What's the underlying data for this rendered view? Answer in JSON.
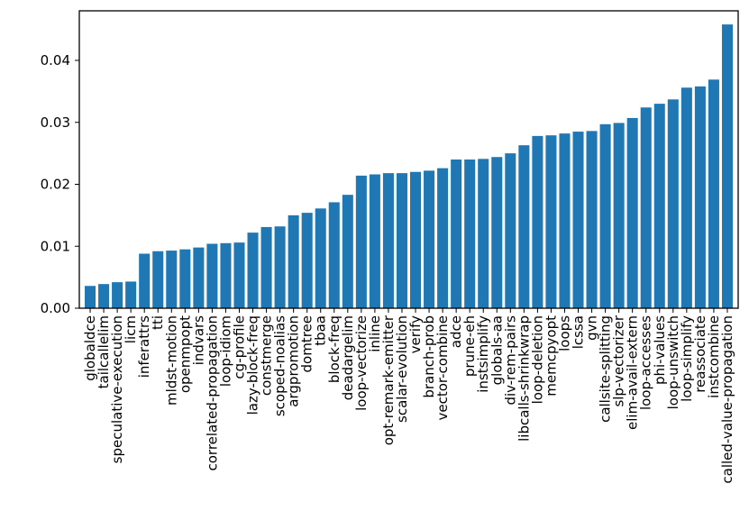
{
  "chart_data": {
    "type": "bar",
    "title": "",
    "xlabel": "",
    "ylabel": "",
    "ylim": [
      0,
      0.048
    ],
    "yticks": [
      0.0,
      0.01,
      0.02,
      0.03,
      0.04
    ],
    "ytick_labels": [
      "0.00",
      "0.01",
      "0.02",
      "0.03",
      "0.04"
    ],
    "grid": false,
    "legend": "none",
    "bar_color": "#1f77b4",
    "categories": [
      "globaldce",
      "tailcallelim",
      "speculative-execution",
      "licm",
      "inferattrs",
      "tti",
      "mldst-motion",
      "openmpopt",
      "indvars",
      "correlated-propagation",
      "loop-idiom",
      "cg-profile",
      "lazy-block-freq",
      "constmerge",
      "scoped-noalias",
      "argpromotion",
      "domtree",
      "tbaa",
      "block-freq",
      "deadargelim",
      "loop-vectorize",
      "inline",
      "opt-remark-emitter",
      "scalar-evolution",
      "verify",
      "branch-prob",
      "vector-combine",
      "adce",
      "prune-eh",
      "instsimplify",
      "globals-aa",
      "div-rem-pairs",
      "libcalls-shrinkwrap",
      "loop-deletion",
      "memcpyopt",
      "loops",
      "lcssa",
      "gvn",
      "callsite-splitting",
      "slp-vectorizer",
      "elim-avail-extern",
      "loop-accesses",
      "phi-values",
      "loop-unswitch",
      "loop-simplify",
      "reassociate",
      "instcombine",
      "called-value-propagation"
    ],
    "values": [
      0.0036,
      0.0039,
      0.0042,
      0.0043,
      0.0088,
      0.0092,
      0.0093,
      0.0095,
      0.0098,
      0.0104,
      0.0105,
      0.0106,
      0.0122,
      0.0131,
      0.0132,
      0.015,
      0.0154,
      0.0161,
      0.0171,
      0.0183,
      0.0214,
      0.0216,
      0.0218,
      0.0218,
      0.022,
      0.0222,
      0.0226,
      0.024,
      0.024,
      0.0241,
      0.0244,
      0.025,
      0.0263,
      0.0278,
      0.0279,
      0.0282,
      0.0285,
      0.0286,
      0.0297,
      0.0299,
      0.0307,
      0.0324,
      0.033,
      0.0337,
      0.0356,
      0.0358,
      0.0369,
      0.0458
    ]
  }
}
